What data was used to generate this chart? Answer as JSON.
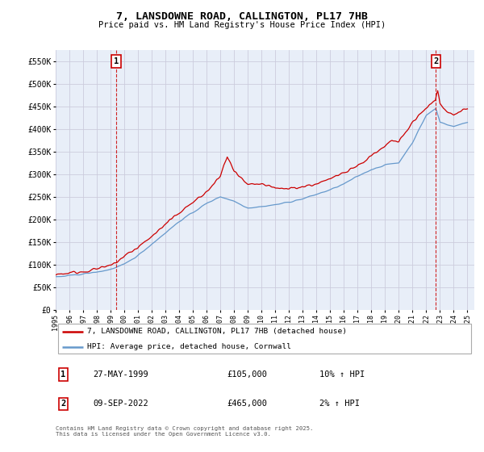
{
  "title": "7, LANSDOWNE ROAD, CALLINGTON, PL17 7HB",
  "subtitle": "Price paid vs. HM Land Registry's House Price Index (HPI)",
  "ylim": [
    0,
    575000
  ],
  "yticks": [
    0,
    50000,
    100000,
    150000,
    200000,
    250000,
    300000,
    350000,
    400000,
    450000,
    500000,
    550000
  ],
  "ytick_labels": [
    "£0",
    "£50K",
    "£100K",
    "£150K",
    "£200K",
    "£250K",
    "£300K",
    "£350K",
    "£400K",
    "£450K",
    "£500K",
    "£550K"
  ],
  "xlim_start": 1995.0,
  "xlim_end": 2025.5,
  "sale1_date": 1999.42,
  "sale1_price": 105000,
  "sale1_label": "1",
  "sale2_date": 2022.7,
  "sale2_price": 465000,
  "sale2_label": "2",
  "line_color_house": "#cc0000",
  "line_color_hpi": "#6699cc",
  "grid_color": "#ccccdd",
  "bg_color": "#e8eef8",
  "legend_label_house": "7, LANSDOWNE ROAD, CALLINGTON, PL17 7HB (detached house)",
  "legend_label_hpi": "HPI: Average price, detached house, Cornwall",
  "footer": "Contains HM Land Registry data © Crown copyright and database right 2025.\nThis data is licensed under the Open Government Licence v3.0.",
  "xtick_years": [
    1995,
    1996,
    1997,
    1998,
    1999,
    2000,
    2001,
    2002,
    2003,
    2004,
    2005,
    2006,
    2007,
    2008,
    2009,
    2010,
    2011,
    2012,
    2013,
    2014,
    2015,
    2016,
    2017,
    2018,
    2019,
    2020,
    2021,
    2022,
    2023,
    2024,
    2025
  ]
}
